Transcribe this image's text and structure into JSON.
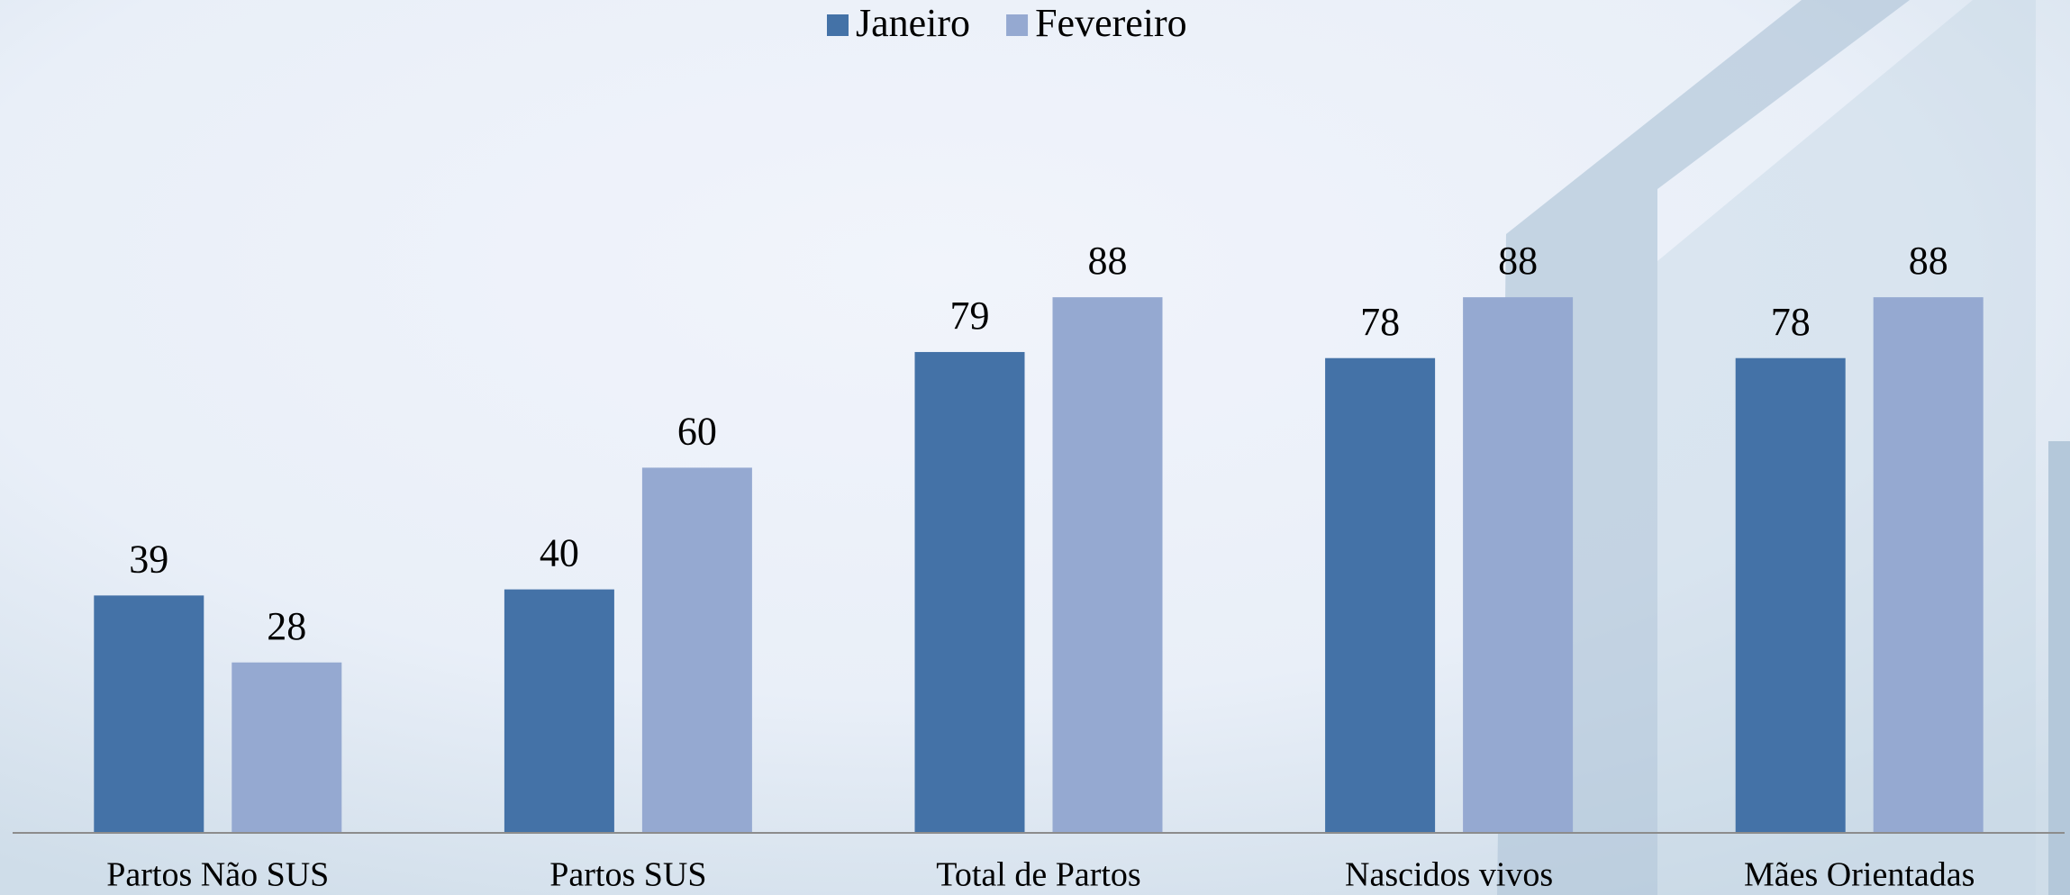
{
  "chart_data": {
    "type": "bar",
    "categories": [
      "Partos Não SUS",
      "Partos SUS",
      "Total de Partos",
      "Nascidos vivos",
      "Mães Orientadas"
    ],
    "series": [
      {
        "name": "Janeiro",
        "color": "#4472a7",
        "values": [
          39,
          40,
          79,
          78,
          78
        ]
      },
      {
        "name": "Fevereiro",
        "color": "#95a9d1",
        "values": [
          28,
          60,
          88,
          88,
          88
        ]
      }
    ],
    "ylim": [
      0,
      100
    ],
    "legend": "top"
  }
}
